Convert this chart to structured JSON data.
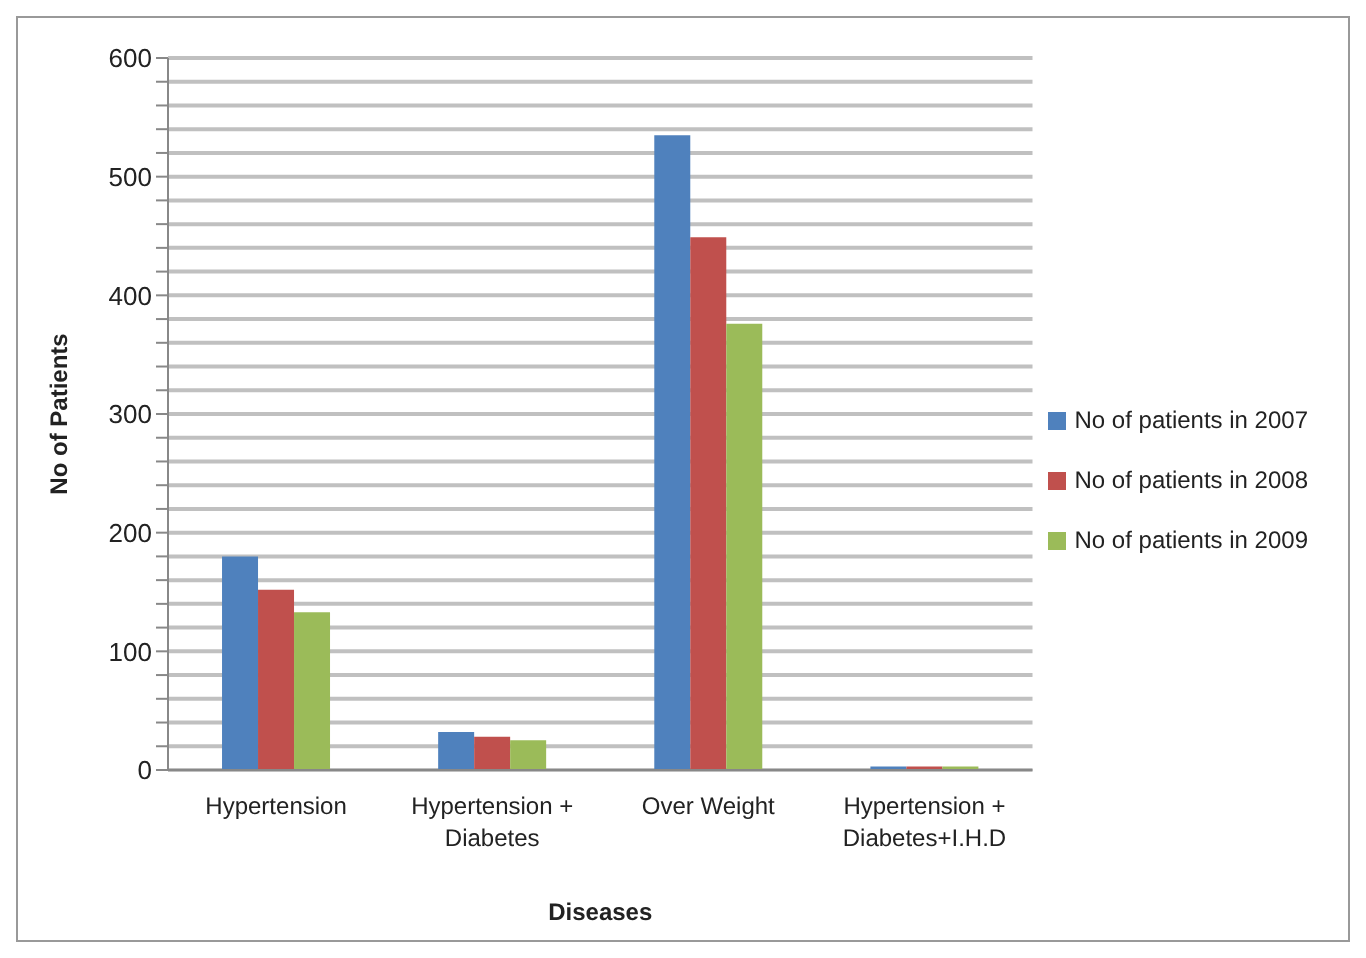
{
  "chart_data": {
    "type": "bar",
    "xlabel": "Diseases",
    "ylabel": "No of Patients",
    "categories": [
      "Hypertension",
      "Hypertension + Diabetes",
      "Over Weight",
      "Hypertension + Diabetes+I.H.D"
    ],
    "series": [
      {
        "name": "No of patients in 2007",
        "color": "#4f81bd",
        "values": [
          180,
          32,
          535,
          3
        ]
      },
      {
        "name": "No of patients in 2008",
        "color": "#c0504d",
        "values": [
          152,
          28,
          449,
          3
        ]
      },
      {
        "name": "No of patients in 2009",
        "color": "#9bbb59",
        "values": [
          133,
          25,
          376,
          3
        ]
      }
    ],
    "ylim": [
      0,
      600
    ],
    "yticks": [
      0,
      {
        "value": 20,
        "label": null
      },
      {
        "value": 40,
        "label": null
      },
      {
        "value": 60,
        "label": null
      },
      {
        "value": 80,
        "label": null
      },
      100,
      {
        "value": 120,
        "label": null
      },
      {
        "value": 140,
        "label": null
      },
      {
        "value": 160,
        "label": null
      },
      {
        "value": 180,
        "label": null
      },
      200,
      {
        "value": 220,
        "label": null
      },
      {
        "value": 240,
        "label": null
      },
      {
        "value": 260,
        "label": null
      },
      {
        "value": 280,
        "label": null
      },
      300,
      {
        "value": 320,
        "label": null
      },
      {
        "value": 340,
        "label": null
      },
      {
        "value": 360,
        "label": null
      },
      {
        "value": 380,
        "label": null
      },
      400,
      {
        "value": 420,
        "label": null
      },
      {
        "value": 440,
        "label": null
      },
      {
        "value": 460,
        "label": null
      },
      {
        "value": 480,
        "label": null
      },
      500,
      {
        "value": 520,
        "label": null
      },
      {
        "value": 540,
        "label": null
      },
      {
        "value": 560,
        "label": null
      },
      {
        "value": 580,
        "label": null
      },
      600
    ],
    "grid": "y",
    "legend": "right"
  }
}
